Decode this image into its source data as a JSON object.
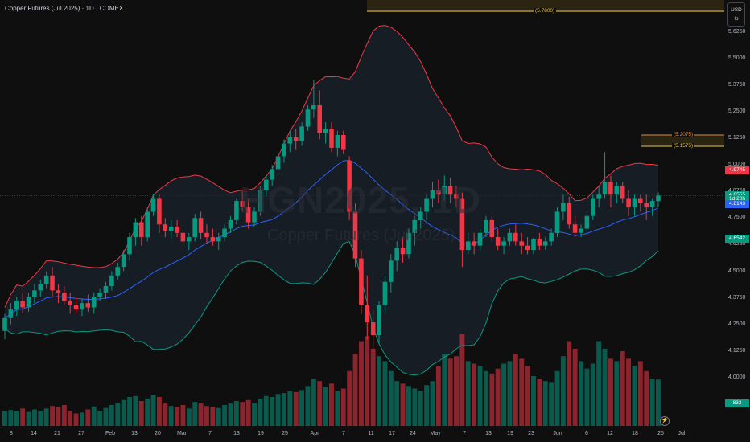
{
  "header": {
    "title": "Copper Futures (Jul 2025) · 1D · COMEX"
  },
  "watermark": {
    "symbol": "HGN2025, 1D",
    "description": "Copper Futures (Jul 2025)"
  },
  "price_scale": {
    "currency": "USD",
    "unit": "lb",
    "ticks": [
      "5.6250",
      "5.5000",
      "5.3750",
      "5.2500",
      "5.1250",
      "5.0000",
      "4.8750",
      "4.7500",
      "4.6250",
      "4.5000",
      "4.3750",
      "4.2500",
      "4.1250",
      "4.0000",
      "3.8750"
    ],
    "tags": [
      {
        "label": "4.9745",
        "value": 4.9745,
        "color": "#f23645"
      },
      {
        "label": "4.8555",
        "value": 4.8555,
        "color": "#089981"
      },
      {
        "label": "1d 20h",
        "value": 4.8365,
        "color": "#089981"
      },
      {
        "label": "4.8143",
        "value": 4.8143,
        "color": "#2962ff"
      },
      {
        "label": "4.6542",
        "value": 4.6542,
        "color": "#089981"
      },
      {
        "label": "833",
        "value": 3.877,
        "color": "#089981"
      }
    ]
  },
  "time_scale": {
    "ticks": [
      "8",
      "14",
      "21",
      "27",
      "Feb",
      "13",
      "20",
      "Mar",
      "7",
      "13",
      "19",
      "25",
      "Apr",
      "7",
      "11",
      "17",
      "24",
      "May",
      "7",
      "13",
      "19",
      "23",
      "Jun",
      "6",
      "12",
      "18",
      "25",
      "Jul"
    ]
  },
  "levels": [
    {
      "label": "(5.7800)",
      "value": 5.78,
      "color": "#e7c54a"
    },
    {
      "label": "(5.2075)",
      "value": 5.2075,
      "color": "#e08a3c"
    },
    {
      "label": "(5.1575)",
      "value": 5.1575,
      "color": "#e7c54a"
    }
  ],
  "colors": {
    "up": "#089981",
    "down": "#f23645",
    "bb_upper": "#f23645",
    "bb_lower": "#089981",
    "bb_basis": "#2962ff",
    "bb_fill": "#1c2530"
  },
  "chart_data": {
    "type": "candlestick",
    "title": "Copper Futures (Jul 2025) · 1D · COMEX",
    "y_unit": "USD/lb",
    "ylim": [
      3.85,
      5.8
    ],
    "last_price": 4.8555,
    "candles": [
      {
        "o": 4.22,
        "h": 4.3,
        "l": 4.18,
        "c": 4.28,
        "v": 0.3
      },
      {
        "o": 4.28,
        "h": 4.35,
        "l": 4.25,
        "c": 4.32,
        "v": 0.32
      },
      {
        "o": 4.32,
        "h": 4.38,
        "l": 4.29,
        "c": 4.36,
        "v": 0.3
      },
      {
        "o": 4.36,
        "h": 4.4,
        "l": 4.3,
        "c": 4.33,
        "v": 0.35
      },
      {
        "o": 4.33,
        "h": 4.4,
        "l": 4.31,
        "c": 4.38,
        "v": 0.28
      },
      {
        "o": 4.38,
        "h": 4.44,
        "l": 4.35,
        "c": 4.41,
        "v": 0.33
      },
      {
        "o": 4.41,
        "h": 4.46,
        "l": 4.38,
        "c": 4.44,
        "v": 0.29
      },
      {
        "o": 4.44,
        "h": 4.5,
        "l": 4.42,
        "c": 4.48,
        "v": 0.35
      },
      {
        "o": 4.48,
        "h": 4.52,
        "l": 4.38,
        "c": 4.41,
        "v": 0.4
      },
      {
        "o": 4.41,
        "h": 4.44,
        "l": 4.35,
        "c": 4.4,
        "v": 0.38
      },
      {
        "o": 4.4,
        "h": 4.43,
        "l": 4.34,
        "c": 4.36,
        "v": 0.42
      },
      {
        "o": 4.36,
        "h": 4.4,
        "l": 4.3,
        "c": 4.34,
        "v": 0.3
      },
      {
        "o": 4.34,
        "h": 4.38,
        "l": 4.3,
        "c": 4.32,
        "v": 0.25
      },
      {
        "o": 4.32,
        "h": 4.37,
        "l": 4.29,
        "c": 4.35,
        "v": 0.27
      },
      {
        "o": 4.35,
        "h": 4.39,
        "l": 4.31,
        "c": 4.33,
        "v": 0.33
      },
      {
        "o": 4.33,
        "h": 4.4,
        "l": 4.3,
        "c": 4.38,
        "v": 0.39
      },
      {
        "o": 4.38,
        "h": 4.42,
        "l": 4.36,
        "c": 4.4,
        "v": 0.3
      },
      {
        "o": 4.4,
        "h": 4.45,
        "l": 4.37,
        "c": 4.43,
        "v": 0.36
      },
      {
        "o": 4.43,
        "h": 4.5,
        "l": 4.41,
        "c": 4.48,
        "v": 0.42
      },
      {
        "o": 4.48,
        "h": 4.54,
        "l": 4.46,
        "c": 4.52,
        "v": 0.46
      },
      {
        "o": 4.52,
        "h": 4.6,
        "l": 4.5,
        "c": 4.58,
        "v": 0.52
      },
      {
        "o": 4.58,
        "h": 4.68,
        "l": 4.55,
        "c": 4.66,
        "v": 0.58
      },
      {
        "o": 4.66,
        "h": 4.75,
        "l": 4.62,
        "c": 4.73,
        "v": 0.6
      },
      {
        "o": 4.73,
        "h": 4.76,
        "l": 4.62,
        "c": 4.66,
        "v": 0.5
      },
      {
        "o": 4.66,
        "h": 4.8,
        "l": 4.64,
        "c": 4.78,
        "v": 0.55
      },
      {
        "o": 4.78,
        "h": 4.86,
        "l": 4.76,
        "c": 4.84,
        "v": 0.62
      },
      {
        "o": 4.84,
        "h": 4.86,
        "l": 4.68,
        "c": 4.72,
        "v": 0.58
      },
      {
        "o": 4.72,
        "h": 4.75,
        "l": 4.66,
        "c": 4.69,
        "v": 0.45
      },
      {
        "o": 4.69,
        "h": 4.74,
        "l": 4.65,
        "c": 4.71,
        "v": 0.4
      },
      {
        "o": 4.71,
        "h": 4.74,
        "l": 4.66,
        "c": 4.68,
        "v": 0.38
      },
      {
        "o": 4.68,
        "h": 4.7,
        "l": 4.62,
        "c": 4.64,
        "v": 0.42
      },
      {
        "o": 4.64,
        "h": 4.68,
        "l": 4.6,
        "c": 4.66,
        "v": 0.35
      },
      {
        "o": 4.66,
        "h": 4.77,
        "l": 4.64,
        "c": 4.75,
        "v": 0.48
      },
      {
        "o": 4.75,
        "h": 4.78,
        "l": 4.65,
        "c": 4.68,
        "v": 0.45
      },
      {
        "o": 4.68,
        "h": 4.72,
        "l": 4.63,
        "c": 4.66,
        "v": 0.4
      },
      {
        "o": 4.66,
        "h": 4.7,
        "l": 4.62,
        "c": 4.64,
        "v": 0.38
      },
      {
        "o": 4.64,
        "h": 4.68,
        "l": 4.6,
        "c": 4.66,
        "v": 0.36
      },
      {
        "o": 4.66,
        "h": 4.72,
        "l": 4.64,
        "c": 4.7,
        "v": 0.42
      },
      {
        "o": 4.7,
        "h": 4.76,
        "l": 4.68,
        "c": 4.74,
        "v": 0.45
      },
      {
        "o": 4.74,
        "h": 4.84,
        "l": 4.72,
        "c": 4.83,
        "v": 0.5
      },
      {
        "o": 4.83,
        "h": 4.88,
        "l": 4.78,
        "c": 4.8,
        "v": 0.48
      },
      {
        "o": 4.8,
        "h": 4.84,
        "l": 4.7,
        "c": 4.73,
        "v": 0.52
      },
      {
        "o": 4.73,
        "h": 4.8,
        "l": 4.71,
        "c": 4.78,
        "v": 0.46
      },
      {
        "o": 4.78,
        "h": 4.9,
        "l": 4.76,
        "c": 4.88,
        "v": 0.55
      },
      {
        "o": 4.88,
        "h": 4.95,
        "l": 4.85,
        "c": 4.93,
        "v": 0.6
      },
      {
        "o": 4.93,
        "h": 5.0,
        "l": 4.9,
        "c": 4.98,
        "v": 0.58
      },
      {
        "o": 4.98,
        "h": 5.06,
        "l": 4.95,
        "c": 5.04,
        "v": 0.64
      },
      {
        "o": 5.04,
        "h": 5.12,
        "l": 5.01,
        "c": 5.1,
        "v": 0.66
      },
      {
        "o": 5.1,
        "h": 5.16,
        "l": 5.06,
        "c": 5.13,
        "v": 0.7
      },
      {
        "o": 5.13,
        "h": 5.17,
        "l": 5.07,
        "c": 5.11,
        "v": 0.68
      },
      {
        "o": 5.11,
        "h": 5.2,
        "l": 5.09,
        "c": 5.18,
        "v": 0.72
      },
      {
        "o": 5.18,
        "h": 5.28,
        "l": 5.16,
        "c": 5.26,
        "v": 0.8
      },
      {
        "o": 5.26,
        "h": 5.4,
        "l": 5.22,
        "c": 5.28,
        "v": 0.95
      },
      {
        "o": 5.28,
        "h": 5.35,
        "l": 5.12,
        "c": 5.15,
        "v": 0.9
      },
      {
        "o": 5.15,
        "h": 5.2,
        "l": 5.1,
        "c": 5.17,
        "v": 0.78
      },
      {
        "o": 5.17,
        "h": 5.2,
        "l": 5.06,
        "c": 5.08,
        "v": 0.85
      },
      {
        "o": 5.08,
        "h": 5.16,
        "l": 5.04,
        "c": 5.14,
        "v": 0.7
      },
      {
        "o": 5.14,
        "h": 5.16,
        "l": 5.05,
        "c": 5.07,
        "v": 0.75
      },
      {
        "o": 5.02,
        "h": 5.04,
        "l": 4.74,
        "c": 4.78,
        "v": 1.1
      },
      {
        "o": 4.78,
        "h": 4.82,
        "l": 4.52,
        "c": 4.56,
        "v": 1.45
      },
      {
        "o": 4.56,
        "h": 4.6,
        "l": 4.3,
        "c": 4.34,
        "v": 1.7
      },
      {
        "o": 4.34,
        "h": 4.48,
        "l": 4.18,
        "c": 4.26,
        "v": 1.8
      },
      {
        "o": 4.26,
        "h": 4.32,
        "l": 4.12,
        "c": 4.2,
        "v": 1.55
      },
      {
        "o": 4.2,
        "h": 4.36,
        "l": 4.16,
        "c": 4.34,
        "v": 1.4
      },
      {
        "o": 4.34,
        "h": 4.48,
        "l": 4.3,
        "c": 4.45,
        "v": 1.3
      },
      {
        "o": 4.45,
        "h": 4.58,
        "l": 4.4,
        "c": 4.55,
        "v": 1.1
      },
      {
        "o": 4.55,
        "h": 4.64,
        "l": 4.5,
        "c": 4.61,
        "v": 0.9
      },
      {
        "o": 4.61,
        "h": 4.66,
        "l": 4.54,
        "c": 4.58,
        "v": 0.85
      },
      {
        "o": 4.58,
        "h": 4.7,
        "l": 4.56,
        "c": 4.68,
        "v": 0.8
      },
      {
        "o": 4.68,
        "h": 4.76,
        "l": 4.62,
        "c": 4.74,
        "v": 0.75
      },
      {
        "o": 4.74,
        "h": 4.8,
        "l": 4.7,
        "c": 4.78,
        "v": 0.7
      },
      {
        "o": 4.78,
        "h": 4.86,
        "l": 4.74,
        "c": 4.84,
        "v": 0.82
      },
      {
        "o": 4.84,
        "h": 4.92,
        "l": 4.8,
        "c": 4.88,
        "v": 0.9
      },
      {
        "o": 4.88,
        "h": 4.93,
        "l": 4.82,
        "c": 4.86,
        "v": 1.2
      },
      {
        "o": 4.86,
        "h": 4.95,
        "l": 4.83,
        "c": 4.9,
        "v": 1.45
      },
      {
        "o": 4.9,
        "h": 4.94,
        "l": 4.82,
        "c": 4.86,
        "v": 1.35
      },
      {
        "o": 4.86,
        "h": 4.9,
        "l": 4.8,
        "c": 4.84,
        "v": 1.4
      },
      {
        "o": 4.84,
        "h": 4.87,
        "l": 4.52,
        "c": 4.6,
        "v": 1.85
      },
      {
        "o": 4.6,
        "h": 4.68,
        "l": 4.58,
        "c": 4.64,
        "v": 1.3
      },
      {
        "o": 4.64,
        "h": 4.68,
        "l": 4.58,
        "c": 4.62,
        "v": 1.25
      },
      {
        "o": 4.62,
        "h": 4.7,
        "l": 4.6,
        "c": 4.68,
        "v": 1.2
      },
      {
        "o": 4.68,
        "h": 4.76,
        "l": 4.66,
        "c": 4.74,
        "v": 1.1
      },
      {
        "o": 4.74,
        "h": 4.76,
        "l": 4.64,
        "c": 4.66,
        "v": 1.05
      },
      {
        "o": 4.66,
        "h": 4.7,
        "l": 4.6,
        "c": 4.62,
        "v": 1.15
      },
      {
        "o": 4.62,
        "h": 4.66,
        "l": 4.58,
        "c": 4.64,
        "v": 1.25
      },
      {
        "o": 4.64,
        "h": 4.7,
        "l": 4.62,
        "c": 4.68,
        "v": 1.3
      },
      {
        "o": 4.68,
        "h": 4.72,
        "l": 4.62,
        "c": 4.64,
        "v": 1.45
      },
      {
        "o": 4.64,
        "h": 4.68,
        "l": 4.58,
        "c": 4.62,
        "v": 1.35
      },
      {
        "o": 4.62,
        "h": 4.66,
        "l": 4.58,
        "c": 4.6,
        "v": 1.2
      },
      {
        "o": 4.6,
        "h": 4.66,
        "l": 4.58,
        "c": 4.65,
        "v": 1.0
      },
      {
        "o": 4.65,
        "h": 4.68,
        "l": 4.6,
        "c": 4.62,
        "v": 0.95
      },
      {
        "o": 4.62,
        "h": 4.66,
        "l": 4.6,
        "c": 4.64,
        "v": 0.9
      },
      {
        "o": 4.64,
        "h": 4.7,
        "l": 4.62,
        "c": 4.68,
        "v": 0.88
      },
      {
        "o": 4.68,
        "h": 4.8,
        "l": 4.66,
        "c": 4.78,
        "v": 1.1
      },
      {
        "o": 4.78,
        "h": 4.86,
        "l": 4.74,
        "c": 4.82,
        "v": 1.4
      },
      {
        "o": 4.82,
        "h": 4.85,
        "l": 4.7,
        "c": 4.72,
        "v": 1.7
      },
      {
        "o": 4.72,
        "h": 4.76,
        "l": 4.66,
        "c": 4.68,
        "v": 1.55
      },
      {
        "o": 4.68,
        "h": 4.72,
        "l": 4.66,
        "c": 4.7,
        "v": 1.3
      },
      {
        "o": 4.7,
        "h": 4.78,
        "l": 4.68,
        "c": 4.76,
        "v": 1.15
      },
      {
        "o": 4.76,
        "h": 4.86,
        "l": 4.74,
        "c": 4.84,
        "v": 1.25
      },
      {
        "o": 4.84,
        "h": 4.9,
        "l": 4.8,
        "c": 4.86,
        "v": 1.7
      },
      {
        "o": 4.86,
        "h": 5.06,
        "l": 4.84,
        "c": 4.92,
        "v": 1.55
      },
      {
        "o": 4.92,
        "h": 4.95,
        "l": 4.8,
        "c": 4.86,
        "v": 1.35
      },
      {
        "o": 4.86,
        "h": 4.92,
        "l": 4.82,
        "c": 4.9,
        "v": 1.3
      },
      {
        "o": 4.9,
        "h": 4.92,
        "l": 4.82,
        "c": 4.84,
        "v": 1.5
      },
      {
        "o": 4.84,
        "h": 4.88,
        "l": 4.76,
        "c": 4.8,
        "v": 1.35
      },
      {
        "o": 4.8,
        "h": 4.86,
        "l": 4.76,
        "c": 4.84,
        "v": 1.2
      },
      {
        "o": 4.84,
        "h": 4.86,
        "l": 4.78,
        "c": 4.82,
        "v": 1.3
      },
      {
        "o": 4.82,
        "h": 4.86,
        "l": 4.74,
        "c": 4.8,
        "v": 1.1
      },
      {
        "o": 4.8,
        "h": 4.84,
        "l": 4.76,
        "c": 4.83,
        "v": 0.95
      },
      {
        "o": 4.83,
        "h": 4.87,
        "l": 4.8,
        "c": 4.8555,
        "v": 0.93
      }
    ],
    "volume_label": "833"
  }
}
